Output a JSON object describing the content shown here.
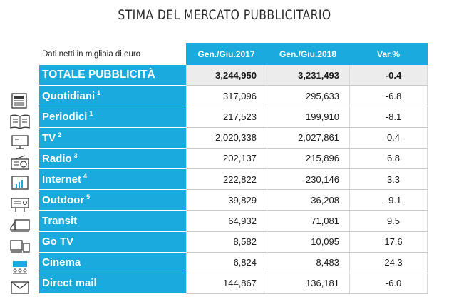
{
  "title": "STIMA DEL MERCATO PUBBLICITARIO",
  "table": {
    "note": "Dati netti in migliaia di euro",
    "headers": [
      "Gen./Giu.2017",
      "Gen./Giu.2018",
      "Var.%"
    ],
    "total": {
      "label": "TOTALE PUBBLICITÀ",
      "v2017": "3,244,950",
      "v2018": "3,231,493",
      "var": "-0.4"
    },
    "rows": [
      {
        "label": "Quotidiani",
        "sup": "1",
        "v2017": "317,096",
        "v2018": "295,633",
        "var": "-6.8",
        "icon": "newspaper-icon"
      },
      {
        "label": "Periodici",
        "sup": "1",
        "v2017": "217,523",
        "v2018": "199,910",
        "var": "-8.1",
        "icon": "magazine-icon"
      },
      {
        "label": "TV",
        "sup": "2",
        "v2017": "2,020,338",
        "v2018": "2,027,861",
        "var": "0.4",
        "icon": "tv-icon"
      },
      {
        "label": "Radio",
        "sup": "3",
        "v2017": "202,137",
        "v2018": "215,896",
        "var": "6.8",
        "icon": "radio-icon"
      },
      {
        "label": "Internet",
        "sup": "4",
        "v2017": "222,822",
        "v2018": "230,146",
        "var": "3.3",
        "icon": "internet-icon"
      },
      {
        "label": "Outdoor",
        "sup": "5",
        "v2017": "39,829",
        "v2018": "36,208",
        "var": "-9.1",
        "icon": "billboard-icon"
      },
      {
        "label": "Transit",
        "sup": "",
        "v2017": "64,932",
        "v2018": "71,081",
        "var": "9.5",
        "icon": "bus-icon"
      },
      {
        "label": "Go TV",
        "sup": "",
        "v2017": "8,582",
        "v2018": "10,095",
        "var": "17.6",
        "icon": "go-tv-icon"
      },
      {
        "label": "Cinema",
        "sup": "",
        "v2017": "6,824",
        "v2018": "8,483",
        "var": "24.3",
        "icon": "cinema-icon"
      },
      {
        "label": "Direct mail",
        "sup": "",
        "v2017": "144,867",
        "v2018": "136,181",
        "var": "-6.0",
        "icon": "envelope-icon"
      }
    ]
  }
}
